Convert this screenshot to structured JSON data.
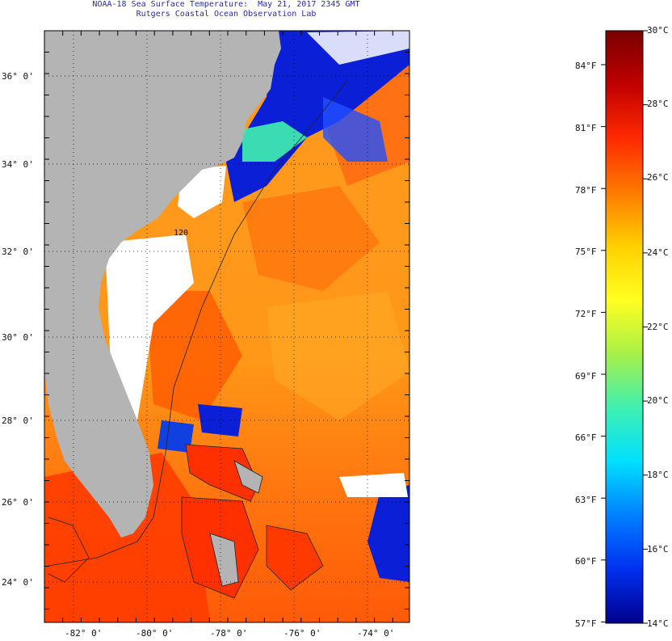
{
  "title": {
    "line1": "NOAA-18 Sea Surface Temperature:  May 21, 2017 2345 GMT",
    "line2": "Rutgers Coastal Ocean Observation Lab"
  },
  "map": {
    "lat_labels": [
      "36° 0'",
      "34° 0'",
      "32° 0'",
      "30° 0'",
      "28° 0'",
      "26° 0'",
      "24° 0'"
    ],
    "lon_labels": [
      "-82° 0'",
      "-80° 0'",
      "-78° 0'",
      "-76° 0'",
      "-74° 0'"
    ],
    "contour_label": "120",
    "colors": {
      "land": "#b4b4b4",
      "cloud": "#ffffff",
      "warm": "#ff3c00",
      "mid": "#ff8c1a",
      "cool": "#0a1fd6",
      "cold": "#00008c"
    }
  },
  "colorbar": {
    "celsius_labels": [
      "30°C",
      "28°C",
      "26°C",
      "24°C",
      "22°C",
      "20°C",
      "18°C",
      "16°C",
      "14°C"
    ],
    "fahrenheit_labels": [
      "84°F",
      "81°F",
      "78°F",
      "75°F",
      "72°F",
      "69°F",
      "66°F",
      "63°F",
      "60°F",
      "57°F"
    ],
    "gradient_colors": [
      "#7a0000",
      "#c00000",
      "#ff2a00",
      "#ff7a00",
      "#ffd000",
      "#ffff20",
      "#a8f048",
      "#40f0b0",
      "#00e0ff",
      "#0080ff",
      "#0030f0",
      "#00008c"
    ]
  }
}
